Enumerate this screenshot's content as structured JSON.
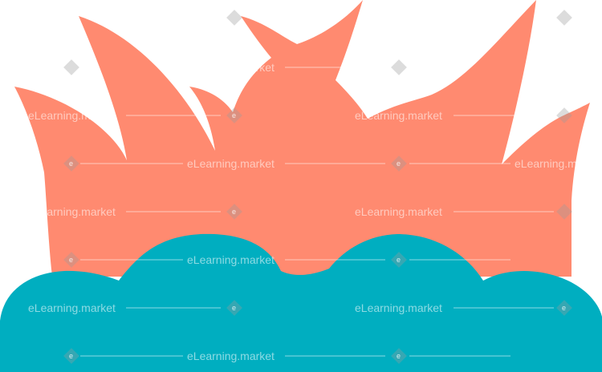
{
  "illustration": {
    "flame_color": "#FF8A70",
    "water_color": "#00AEC0"
  },
  "watermark": {
    "text": "eLearning.market",
    "logo_letter": "e",
    "color": "#FFFFFF"
  }
}
